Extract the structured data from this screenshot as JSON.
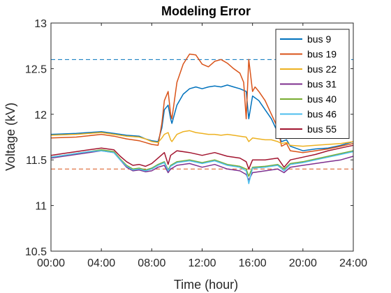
{
  "chart_data": {
    "type": "line",
    "title": "Modeling Error",
    "xlabel": "Time (hour)",
    "ylabel": "Voltage (kV)",
    "xlim": [
      0,
      24
    ],
    "ylim": [
      10.5,
      13
    ],
    "xticks": [
      0,
      4,
      8,
      12,
      16,
      20,
      24
    ],
    "xtick_labels": [
      "00:00",
      "04:00",
      "08:00",
      "12:00",
      "16:00",
      "20:00",
      "24:00"
    ],
    "yticks": [
      10.5,
      11,
      11.5,
      12,
      12.5,
      13
    ],
    "ytick_labels": [
      "10.5",
      "11",
      "11.5",
      "12",
      "12.5",
      "13"
    ],
    "grid": false,
    "legend_position": "top-right",
    "reference_lines": [
      {
        "y": 12.6,
        "style": "dashed",
        "color": "#0072BD"
      },
      {
        "y": 11.4,
        "style": "dashed",
        "color": "#D95319"
      }
    ],
    "series": [
      {
        "name": "bus 9",
        "color": "#0072BD",
        "x": [
          0,
          2,
          4,
          5,
          6,
          7,
          7.5,
          8,
          8.5,
          8.8,
          9,
          9.3,
          9.5,
          9.6,
          10,
          10.5,
          11,
          11.5,
          12,
          12.5,
          13,
          13.5,
          14,
          14.5,
          15,
          15.5,
          15.7,
          16,
          16.5,
          17,
          17.5,
          18,
          18.3,
          18.7,
          19,
          20,
          21,
          22,
          23,
          24
        ],
        "y": [
          11.78,
          11.79,
          11.81,
          11.79,
          11.77,
          11.76,
          11.73,
          11.71,
          11.7,
          11.85,
          12.05,
          12.1,
          11.95,
          11.9,
          12.1,
          12.22,
          12.28,
          12.3,
          12.28,
          12.3,
          12.31,
          12.3,
          12.32,
          12.3,
          12.28,
          12.25,
          11.95,
          12.2,
          12.15,
          12.05,
          11.95,
          11.8,
          11.7,
          11.72,
          11.65,
          11.6,
          11.62,
          11.63,
          11.66,
          11.7
        ]
      },
      {
        "name": "bus 19",
        "color": "#D95319",
        "x": [
          0,
          2,
          4,
          5,
          6,
          7,
          7.5,
          8,
          8.5,
          8.8,
          9,
          9.3,
          9.5,
          9.6,
          10,
          10.5,
          11,
          11.5,
          12,
          12.5,
          13,
          13.5,
          14,
          14.5,
          15,
          15.3,
          15.5,
          15.7,
          16,
          16.2,
          16.5,
          17,
          17.5,
          18,
          18.3,
          18.7,
          19,
          20,
          21,
          22,
          23,
          24
        ],
        "y": [
          11.74,
          11.75,
          11.78,
          11.76,
          11.73,
          11.71,
          11.69,
          11.67,
          11.66,
          11.9,
          12.15,
          12.25,
          12.0,
          11.95,
          12.35,
          12.55,
          12.66,
          12.65,
          12.55,
          12.52,
          12.58,
          12.6,
          12.56,
          12.5,
          12.45,
          12.35,
          11.95,
          12.6,
          12.25,
          12.3,
          12.25,
          12.15,
          12.0,
          11.85,
          11.65,
          11.68,
          11.6,
          11.58,
          11.6,
          11.62,
          11.65,
          11.68
        ]
      },
      {
        "name": "bus 22",
        "color": "#EDB120",
        "x": [
          0,
          2,
          4,
          5,
          6,
          7,
          7.5,
          8,
          8.5,
          8.8,
          9,
          9.3,
          9.5,
          9.6,
          10,
          10.5,
          11,
          11.5,
          12,
          12.5,
          13,
          13.5,
          14,
          14.5,
          15,
          15.5,
          15.7,
          16,
          16.5,
          17,
          17.5,
          18,
          18.3,
          18.7,
          19,
          20,
          21,
          22,
          23,
          24
        ],
        "y": [
          11.77,
          11.78,
          11.8,
          11.78,
          11.76,
          11.75,
          11.73,
          11.7,
          11.69,
          11.74,
          11.78,
          11.8,
          11.72,
          11.7,
          11.78,
          11.81,
          11.82,
          11.8,
          11.79,
          11.78,
          11.78,
          11.77,
          11.78,
          11.77,
          11.76,
          11.75,
          11.7,
          11.74,
          11.73,
          11.72,
          11.72,
          11.7,
          11.68,
          11.69,
          11.66,
          11.65,
          11.66,
          11.67,
          11.68,
          11.7
        ]
      },
      {
        "name": "bus 31",
        "color": "#7E2F8E",
        "x": [
          0,
          1,
          2,
          3,
          4,
          5,
          5.5,
          6,
          6.5,
          7,
          7.5,
          8,
          8.5,
          9,
          9.3,
          9.5,
          10,
          11,
          12,
          13,
          14,
          15,
          15.5,
          15.7,
          16,
          17,
          18,
          18.5,
          19,
          20,
          21,
          22,
          23,
          24
        ],
        "y": [
          11.52,
          11.54,
          11.56,
          11.58,
          11.6,
          11.58,
          11.5,
          11.42,
          11.38,
          11.39,
          11.37,
          11.38,
          11.42,
          11.44,
          11.36,
          11.4,
          11.44,
          11.46,
          11.42,
          11.45,
          11.4,
          11.38,
          11.34,
          11.28,
          11.36,
          11.38,
          11.4,
          11.36,
          11.42,
          11.44,
          11.46,
          11.48,
          11.5,
          11.54
        ]
      },
      {
        "name": "bus 40",
        "color": "#77AC30",
        "x": [
          0,
          1,
          2,
          3,
          4,
          5,
          5.5,
          6,
          6.5,
          7,
          7.5,
          8,
          8.5,
          9,
          9.3,
          9.5,
          10,
          11,
          12,
          13,
          14,
          15,
          15.5,
          15.7,
          16,
          17,
          18,
          18.5,
          19,
          20,
          21,
          22,
          23,
          24
        ],
        "y": [
          11.53,
          11.55,
          11.57,
          11.59,
          11.61,
          11.59,
          11.51,
          11.44,
          11.4,
          11.41,
          11.39,
          11.41,
          11.45,
          11.48,
          11.39,
          11.44,
          11.48,
          11.5,
          11.47,
          11.5,
          11.45,
          11.43,
          11.4,
          11.32,
          11.42,
          11.43,
          11.45,
          11.4,
          11.46,
          11.48,
          11.51,
          11.54,
          11.57,
          11.6
        ]
      },
      {
        "name": "bus 46",
        "color": "#4DBEEE",
        "x": [
          0,
          1,
          2,
          3,
          4,
          5,
          5.5,
          6,
          6.5,
          7,
          7.5,
          8,
          8.5,
          9,
          9.3,
          9.5,
          10,
          11,
          12,
          13,
          14,
          15,
          15.5,
          15.7,
          16,
          17,
          18,
          18.5,
          19,
          20,
          21,
          22,
          23,
          24
        ],
        "y": [
          11.53,
          11.55,
          11.57,
          11.59,
          11.6,
          11.58,
          11.5,
          11.43,
          11.39,
          11.4,
          11.38,
          11.4,
          11.44,
          11.47,
          11.38,
          11.43,
          11.47,
          11.49,
          11.46,
          11.49,
          11.44,
          11.42,
          11.38,
          11.24,
          11.41,
          11.42,
          11.44,
          11.38,
          11.45,
          11.47,
          11.5,
          11.53,
          11.56,
          11.59
        ]
      },
      {
        "name": "bus 55",
        "color": "#A2142F",
        "x": [
          0,
          1,
          2,
          3,
          4,
          5,
          5.5,
          6,
          6.5,
          7,
          7.5,
          8,
          8.5,
          9,
          9.3,
          9.5,
          10,
          11,
          12,
          13,
          14,
          15,
          15.5,
          15.7,
          16,
          17,
          18,
          18.5,
          19,
          20,
          21,
          22,
          23,
          24
        ],
        "y": [
          11.55,
          11.57,
          11.59,
          11.61,
          11.63,
          11.61,
          11.54,
          11.48,
          11.44,
          11.45,
          11.43,
          11.46,
          11.52,
          11.58,
          11.45,
          11.55,
          11.6,
          11.58,
          11.55,
          11.58,
          11.54,
          11.52,
          11.48,
          11.4,
          11.5,
          11.5,
          11.52,
          11.42,
          11.5,
          11.53,
          11.56,
          11.6,
          11.63,
          11.66
        ]
      }
    ]
  }
}
